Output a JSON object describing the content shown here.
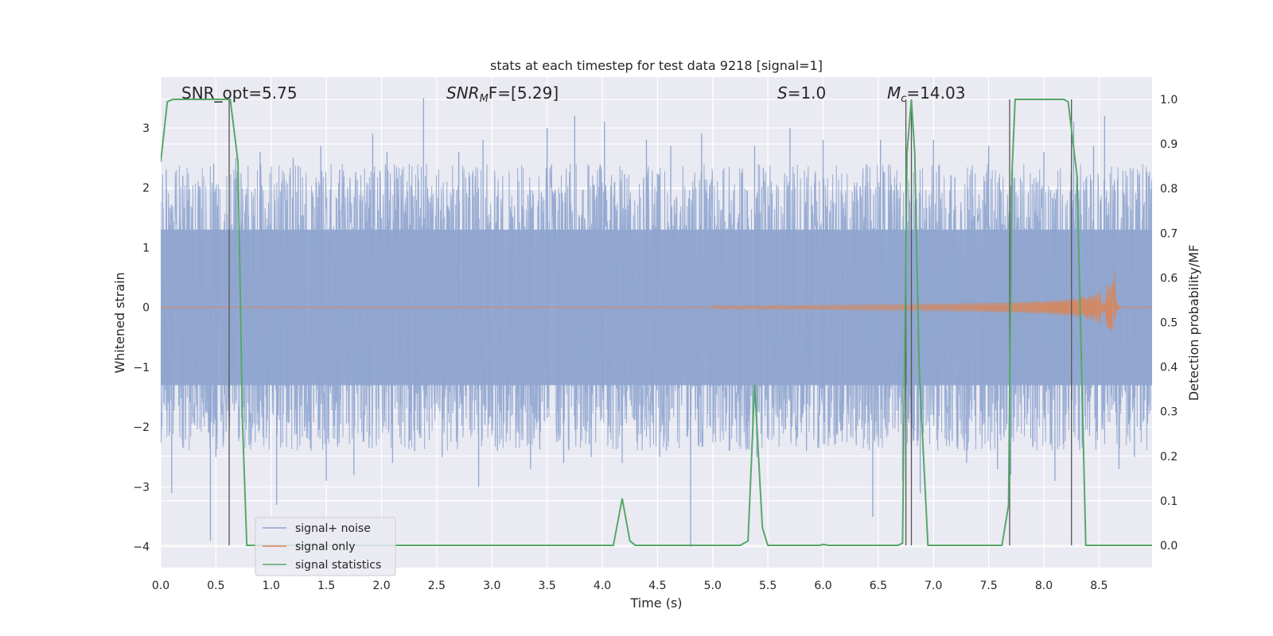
{
  "chart_data": {
    "type": "line",
    "title": "stats at each timestep for test data 9218 [signal=1]",
    "xlabel": "Time (s)",
    "ylabel": "Whitened strain",
    "y2label": "Detection probability/MF",
    "xlim": [
      0.0,
      8.98
    ],
    "ylim": [
      -4.35,
      3.85
    ],
    "y2lim": [
      -0.05,
      1.05
    ],
    "x_ticks": [
      0.0,
      0.5,
      1.0,
      1.5,
      2.0,
      2.5,
      3.0,
      3.5,
      4.0,
      4.5,
      5.0,
      5.5,
      6.0,
      6.5,
      7.0,
      7.5,
      8.0,
      8.5
    ],
    "x_tick_labels": [
      "0.0",
      "0.5",
      "1.0",
      "1.5",
      "2.0",
      "2.5",
      "3.0",
      "3.5",
      "4.0",
      "4.5",
      "5.0",
      "5.5",
      "6.0",
      "6.5",
      "7.0",
      "7.5",
      "8.0",
      "8.5"
    ],
    "y_ticks": [
      -4,
      -3,
      -2,
      -1,
      0,
      1,
      2,
      3
    ],
    "y_tick_labels": [
      "−4",
      "−3",
      "−2",
      "−1",
      "0",
      "1",
      "2",
      "3"
    ],
    "y2_ticks": [
      0.0,
      0.1,
      0.2,
      0.3,
      0.4,
      0.5,
      0.6,
      0.7,
      0.8,
      0.9,
      1.0
    ],
    "y2_tick_labels": [
      "0.0",
      "0.1",
      "0.2",
      "0.3",
      "0.4",
      "0.5",
      "0.6",
      "0.7",
      "0.8",
      "0.9",
      "1.0"
    ],
    "grid": true,
    "legend_position": "lower-left",
    "annotations": {
      "snr_opt_text": "SNR_opt=5.75",
      "snr_mf_main": "SNR",
      "snr_mf_sub": "M",
      "snr_mf_rest": "F=[5.29]",
      "s_main": "S",
      "s_rest": "=1.0",
      "mc_main": "M",
      "mc_sub": "c",
      "mc_rest": "=14.03"
    },
    "series": [
      {
        "name": "signal+ noise",
        "color": "#8fa5cf",
        "noise_envelope": 1.3,
        "spikes": [
          [
            0.05,
            2.3
          ],
          [
            0.1,
            -3.1
          ],
          [
            0.2,
            2.2
          ],
          [
            0.45,
            -3.9
          ],
          [
            0.48,
            2.4
          ],
          [
            0.5,
            -2.5
          ],
          [
            0.68,
            2.5
          ],
          [
            0.8,
            -2.3
          ],
          [
            0.9,
            2.6
          ],
          [
            1.05,
            -3.3
          ],
          [
            1.2,
            2.5
          ],
          [
            1.45,
            2.7
          ],
          [
            1.5,
            -2.9
          ],
          [
            1.62,
            2.3
          ],
          [
            1.75,
            -2.8
          ],
          [
            1.92,
            2.9
          ],
          [
            2.05,
            2.6
          ],
          [
            2.1,
            -2.6
          ],
          [
            2.3,
            -2.4
          ],
          [
            2.38,
            3.5
          ],
          [
            2.55,
            -2.5
          ],
          [
            2.7,
            2.6
          ],
          [
            2.88,
            -3.0
          ],
          [
            2.92,
            2.8
          ],
          [
            3.05,
            -2.4
          ],
          [
            3.35,
            -2.7
          ],
          [
            3.5,
            3.0
          ],
          [
            3.65,
            -2.6
          ],
          [
            3.75,
            3.2
          ],
          [
            3.9,
            -2.5
          ],
          [
            4.02,
            3.1
          ],
          [
            4.18,
            -2.6
          ],
          [
            4.4,
            2.8
          ],
          [
            4.52,
            -2.5
          ],
          [
            4.62,
            2.7
          ],
          [
            4.8,
            -4.0
          ],
          [
            4.9,
            2.9
          ],
          [
            5.15,
            -2.4
          ],
          [
            5.38,
            2.7
          ],
          [
            5.4,
            -2.5
          ],
          [
            5.7,
            3.0
          ],
          [
            5.85,
            -2.4
          ],
          [
            6.0,
            2.8
          ],
          [
            6.3,
            -2.3
          ],
          [
            6.45,
            -3.5
          ],
          [
            6.52,
            2.8
          ],
          [
            6.72,
            -2.9
          ],
          [
            6.88,
            -3.1
          ],
          [
            7.0,
            2.8
          ],
          [
            7.3,
            -2.6
          ],
          [
            7.5,
            2.7
          ],
          [
            7.58,
            -2.7
          ],
          [
            7.7,
            -2.8
          ],
          [
            8.0,
            2.6
          ],
          [
            8.1,
            -2.9
          ],
          [
            8.27,
            3.1
          ],
          [
            8.45,
            2.7
          ],
          [
            8.55,
            3.2
          ],
          [
            8.68,
            -2.7
          ],
          [
            8.82,
            -2.5
          ],
          [
            8.95,
            2.2
          ]
        ]
      },
      {
        "name": "signal only",
        "color": "#dd8452",
        "description_free": true
      },
      {
        "name": "signal statistics",
        "color": "#55a868",
        "x": [
          0.0,
          0.06,
          0.11,
          0.55,
          0.63,
          0.7,
          0.74,
          0.78,
          4.1,
          4.18,
          4.25,
          4.3,
          5.25,
          5.32,
          5.38,
          5.45,
          5.5,
          5.97,
          6.0,
          6.05,
          6.68,
          6.72,
          6.76,
          6.8,
          6.83,
          6.87,
          6.95,
          7.0,
          7.62,
          7.68,
          7.71,
          7.74,
          7.8,
          8.18,
          8.22,
          8.3,
          8.38,
          8.42,
          8.98
        ],
        "y": [
          0.86,
          0.995,
          1.0,
          1.0,
          1.0,
          0.86,
          0.28,
          0.0,
          0.0,
          0.105,
          0.01,
          0.0,
          0.0,
          0.01,
          0.36,
          0.04,
          0.0,
          0.0,
          0.002,
          0.0,
          0.0,
          0.005,
          0.88,
          1.0,
          0.88,
          0.4,
          0.0,
          0.0,
          0.0,
          0.09,
          0.83,
          1.0,
          1.0,
          1.0,
          0.995,
          0.83,
          0.0,
          0.0,
          0.0
        ]
      }
    ],
    "vertical_lines_x": [
      0.62,
      6.75,
      6.8,
      7.69,
      8.25
    ]
  }
}
